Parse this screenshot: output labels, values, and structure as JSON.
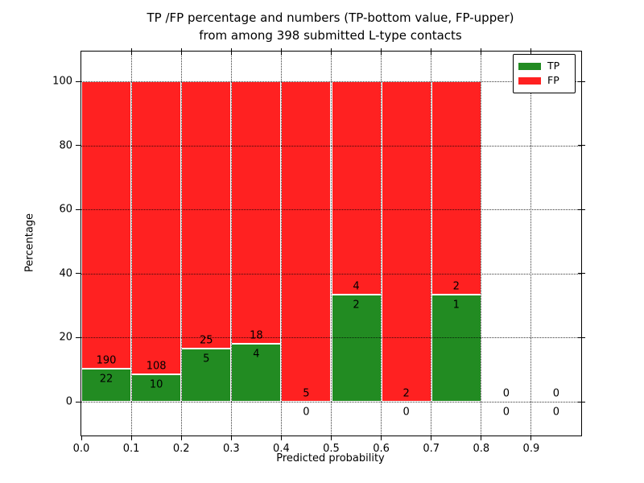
{
  "figure": {
    "title_line1": "TP /FP percentage and numbers (TP-bottom value, FP-upper)",
    "title_line2": "from among 398 submitted L-type contacts",
    "xlabel": "Predicted probability",
    "ylabel": "Percentage"
  },
  "legend": {
    "items": [
      {
        "label": "TP",
        "color": "#228b22"
      },
      {
        "label": "FP",
        "color": "#ff2121"
      }
    ]
  },
  "chart_data": {
    "type": "bar",
    "stacked": true,
    "normalized_to_percent": true,
    "title": "TP /FP percentage and numbers (TP-bottom value, FP-upper) from among 398 submitted L-type contacts",
    "xlabel": "Predicted probability",
    "ylabel": "Percentage",
    "total_contacts": 398,
    "bin_width": 0.1,
    "bins": [
      {
        "range": [
          0.0,
          0.1
        ],
        "tp": 22,
        "fp": 190
      },
      {
        "range": [
          0.1,
          0.2
        ],
        "tp": 10,
        "fp": 108
      },
      {
        "range": [
          0.2,
          0.3
        ],
        "tp": 5,
        "fp": 25
      },
      {
        "range": [
          0.3,
          0.4
        ],
        "tp": 4,
        "fp": 18
      },
      {
        "range": [
          0.4,
          0.5
        ],
        "tp": 0,
        "fp": 5
      },
      {
        "range": [
          0.5,
          0.6
        ],
        "tp": 2,
        "fp": 4
      },
      {
        "range": [
          0.6,
          0.7
        ],
        "tp": 0,
        "fp": 2
      },
      {
        "range": [
          0.7,
          0.8
        ],
        "tp": 1,
        "fp": 2
      },
      {
        "range": [
          0.8,
          0.9
        ],
        "tp": 0,
        "fp": 0
      },
      {
        "range": [
          0.9,
          1.0
        ],
        "tp": 0,
        "fp": 0
      }
    ],
    "series": [
      {
        "name": "TP",
        "color": "#228b22",
        "counts": [
          22,
          10,
          5,
          4,
          0,
          2,
          0,
          1,
          0,
          0
        ]
      },
      {
        "name": "FP",
        "color": "#ff2121",
        "counts": [
          190,
          108,
          25,
          18,
          5,
          4,
          2,
          2,
          0,
          0
        ]
      }
    ],
    "tp_percent_of_bin": [
      10.4,
      8.5,
      16.7,
      18.2,
      0.0,
      33.3,
      0.0,
      33.3,
      null,
      null
    ],
    "xlim": [
      0.0,
      1.0
    ],
    "ylim": [
      -11,
      109
    ],
    "xticks": [
      "0.0",
      "0.1",
      "0.2",
      "0.3",
      "0.4",
      "0.5",
      "0.6",
      "0.7",
      "0.8",
      "0.9"
    ],
    "yticks": [
      "0",
      "20",
      "40",
      "60",
      "80",
      "100"
    ],
    "grid": "dotted-black-both-axes",
    "legend_position": "upper-right-inside",
    "bar_label_note": "FP count printed just above TP/FP boundary, TP count just below; zero-TP bins print TP count below the x-axis"
  }
}
